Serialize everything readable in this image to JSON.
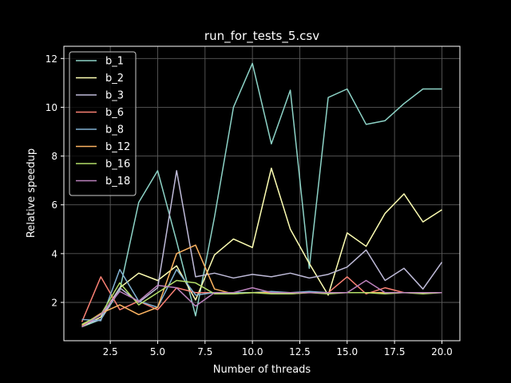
{
  "chart_data": {
    "type": "line",
    "title": "run_for_tests_5.csv",
    "xlabel": "Number of threads",
    "ylabel": "Relative speedup",
    "xlim": [
      0.05,
      20.95
    ],
    "ylim": [
      0.43,
      12.5
    ],
    "xticks": [
      2.5,
      5.0,
      7.5,
      10.0,
      12.5,
      15.0,
      17.5,
      20.0
    ],
    "xtick_labels": [
      "2.5",
      "5.0",
      "7.5",
      "10.0",
      "12.5",
      "15.0",
      "17.5",
      "20.0"
    ],
    "yticks": [
      2,
      4,
      6,
      8,
      10,
      12
    ],
    "ytick_labels": [
      "2",
      "4",
      "6",
      "8",
      "10",
      "12"
    ],
    "grid": true,
    "legend_position": "top-left",
    "background": "#000000",
    "x": [
      1,
      2,
      3,
      4,
      5,
      6,
      7,
      8,
      9,
      10,
      11,
      12,
      13,
      14,
      15,
      16,
      17,
      18,
      19,
      20
    ],
    "series": [
      {
        "name": "b_1",
        "color": "#8dd3c7",
        "values": [
          1.0,
          1.3,
          2.5,
          6.1,
          7.4,
          4.5,
          1.45,
          5.5,
          10.0,
          11.8,
          8.5,
          10.7,
          3.4,
          10.4,
          10.75,
          9.3,
          9.45,
          10.15,
          10.75,
          10.75
        ]
      },
      {
        "name": "b_2",
        "color": "#feffb3",
        "values": [
          1.0,
          1.4,
          2.6,
          3.2,
          2.9,
          3.5,
          2.1,
          3.95,
          4.6,
          4.25,
          7.5,
          5.0,
          3.6,
          2.3,
          4.85,
          4.3,
          5.65,
          6.45,
          5.3,
          5.8
        ]
      },
      {
        "name": "b_3",
        "color": "#bfbbd9",
        "values": [
          1.1,
          1.3,
          2.6,
          2.0,
          2.6,
          7.4,
          3.05,
          3.2,
          3.0,
          3.15,
          3.05,
          3.2,
          3.0,
          3.15,
          3.45,
          4.15,
          2.9,
          3.4,
          2.55,
          3.65
        ]
      },
      {
        "name": "b_6",
        "color": "#fa8174",
        "values": [
          1.2,
          3.05,
          1.7,
          2.05,
          1.7,
          2.6,
          2.4,
          2.4,
          2.4,
          2.4,
          2.4,
          2.4,
          2.4,
          2.4,
          3.05,
          2.35,
          2.6,
          2.4,
          2.4,
          2.4
        ]
      },
      {
        "name": "b_8",
        "color": "#81b1d2",
        "values": [
          1.3,
          1.25,
          3.35,
          2.05,
          1.8,
          3.35,
          2.3,
          2.4,
          2.4,
          2.4,
          2.45,
          2.4,
          2.45,
          2.4,
          2.4,
          2.4,
          2.4,
          2.4,
          2.4,
          2.4
        ]
      },
      {
        "name": "b_12",
        "color": "#fdb462",
        "values": [
          1.05,
          1.55,
          1.9,
          1.5,
          1.8,
          4.0,
          4.35,
          2.55,
          2.35,
          2.4,
          2.4,
          2.35,
          2.4,
          2.4,
          2.4,
          2.4,
          2.4,
          2.4,
          2.4,
          2.4
        ]
      },
      {
        "name": "b_16",
        "color": "#b3de69",
        "values": [
          1.1,
          1.5,
          2.8,
          1.9,
          2.4,
          2.9,
          2.8,
          2.35,
          2.35,
          2.4,
          2.35,
          2.35,
          2.4,
          2.35,
          2.4,
          2.4,
          2.35,
          2.4,
          2.35,
          2.4
        ]
      },
      {
        "name": "b_18",
        "color": "#bc82bd",
        "values": [
          1.0,
          1.5,
          2.45,
          2.05,
          2.7,
          2.6,
          1.85,
          2.4,
          2.4,
          2.6,
          2.4,
          2.4,
          2.4,
          2.4,
          2.4,
          2.9,
          2.4,
          2.4,
          2.4,
          2.4
        ]
      }
    ]
  }
}
